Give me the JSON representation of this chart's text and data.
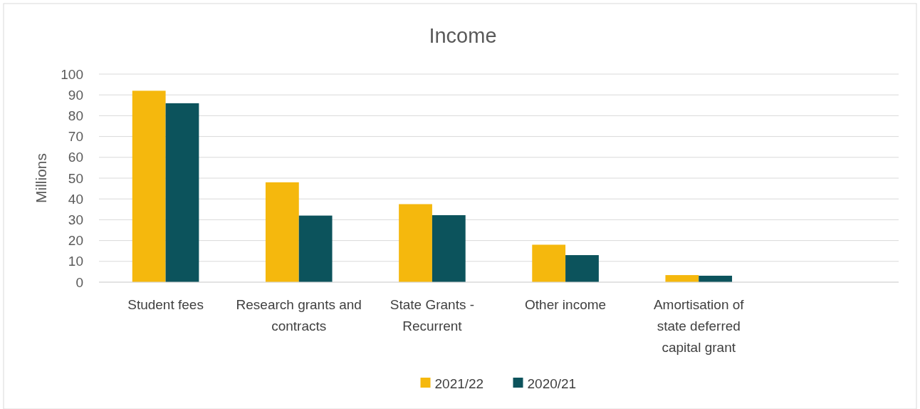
{
  "chart_data": {
    "type": "bar",
    "title": "Income",
    "ylabel": "Millions",
    "categories": [
      "Student fees",
      "Research grants and contracts",
      "State Grants - Recurrent",
      "Other income",
      "Amortisation of state deferred capital grant",
      null
    ],
    "series": [
      {
        "name": "2021/22",
        "color": "#f5b80d",
        "values": [
          92,
          48,
          37.5,
          18,
          3.4,
          null
        ]
      },
      {
        "name": "2020/21",
        "color": "#0c535c",
        "values": [
          86,
          32,
          32.2,
          13,
          3.1,
          null
        ]
      }
    ],
    "ylim": [
      0,
      100
    ],
    "yticks": [
      0,
      10,
      20,
      30,
      40,
      50,
      60,
      70,
      80,
      90,
      100
    ],
    "grid": "y",
    "legend": "bottom"
  }
}
